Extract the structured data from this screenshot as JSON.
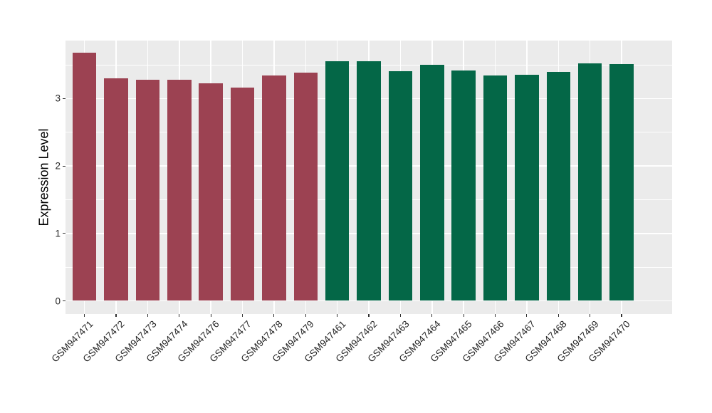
{
  "figure": {
    "background": "#FFFFFF",
    "panel_background": "#EBEBEB",
    "grid_color": "#FFFFFF",
    "axis_text_color": "#262626",
    "axis_title_color": "#000000",
    "tick_mark_color": "#333333"
  },
  "chart_data": {
    "type": "bar",
    "title": "",
    "xlabel": "",
    "ylabel": "Expression Level",
    "categories": [
      "GSM947471",
      "GSM947472",
      "GSM947473",
      "GSM947474",
      "GSM947476",
      "GSM947477",
      "GSM947478",
      "GSM947479",
      "GSM947461",
      "GSM947462",
      "GSM947463",
      "GSM947464",
      "GSM947465",
      "GSM947466",
      "GSM947467",
      "GSM947468",
      "GSM947469",
      "GSM947470"
    ],
    "values": [
      3.68,
      3.3,
      3.28,
      3.28,
      3.23,
      3.16,
      3.34,
      3.38,
      3.55,
      3.55,
      3.41,
      3.5,
      3.42,
      3.34,
      3.35,
      3.4,
      3.52,
      3.51
    ],
    "bar_color_groups": [
      0,
      0,
      0,
      0,
      0,
      0,
      0,
      0,
      1,
      1,
      1,
      1,
      1,
      1,
      1,
      1,
      1,
      1
    ],
    "palette": [
      "#9C4252",
      "#046747"
    ],
    "yticks": {
      "values": [
        0,
        1,
        2,
        3
      ],
      "labels": [
        "0",
        "1",
        "2",
        "3"
      ]
    },
    "yticks_minor": [
      0.5,
      1.5,
      2.5,
      3.5
    ],
    "ylim": [
      -0.19,
      3.86
    ],
    "grid": {
      "horizontal": "major+minor",
      "vertical": "major at category centers"
    },
    "legend": "none",
    "x_tick_label_rotation_deg": 45
  }
}
